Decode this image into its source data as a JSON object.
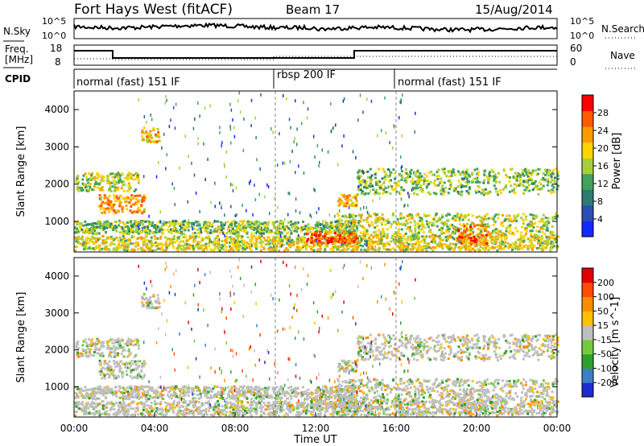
{
  "header": {
    "radar": "Fort Hays West (fitACF)",
    "beam": "Beam 17",
    "date": "15/Aug/2014"
  },
  "noise_panel": {
    "left_label": "N.Sky",
    "left_ticks": [
      "10^5",
      "10^0"
    ],
    "right_label": "N.Search",
    "right_ticks": [
      "10^5",
      "10^0"
    ]
  },
  "freq_panel": {
    "left_label_line1": "Freq.",
    "left_label_line2": "[MHz]",
    "left_ticks": [
      "18",
      "8"
    ],
    "right_label": "Nave",
    "right_ticks": [
      "60",
      "0"
    ]
  },
  "cpid_panel": {
    "label": "CPID",
    "segments": [
      {
        "name": "normal (fast) 151 IF",
        "start": 0,
        "end": 10
      },
      {
        "name": "rbsp 200 IF",
        "start": 10,
        "end": 16
      },
      {
        "name": "normal (fast) 151 IF",
        "start": 16,
        "end": 24
      }
    ]
  },
  "colors": {
    "power_scale": [
      "#1428ff",
      "#2b4fb0",
      "#2e7b72",
      "#41a35b",
      "#a8cf3a",
      "#ffd400",
      "#ff9a00",
      "#ff5a00",
      "#ff0000"
    ],
    "velocity_scale": [
      "#1c2cd2",
      "#3c7fc8",
      "#2ea02e",
      "#74cc3c",
      "#bfbfbf",
      "#ffc000",
      "#ff8c00",
      "#ff4a00",
      "#e00000"
    ]
  },
  "chart_data": [
    {
      "type": "heatmap",
      "panel": "power",
      "ylabel": "Slant Range [km]",
      "ylim": [
        180,
        4500
      ],
      "yticks": [
        1000,
        2000,
        3000,
        4000
      ],
      "xlim": [
        0,
        24
      ],
      "colorbar_label": "Power [dB]",
      "colorbar_ticks": [
        "28",
        "24",
        "20",
        "16",
        "12",
        "8",
        "4"
      ],
      "color_range": [
        0,
        30
      ]
    },
    {
      "type": "heatmap",
      "panel": "velocity",
      "ylabel": "Slant Range [km]",
      "ylim": [
        180,
        4500
      ],
      "yticks": [
        1000,
        2000,
        3000,
        4000
      ],
      "xlim": [
        0,
        24
      ],
      "xlabel": "Time UT",
      "xticks": [
        "00:00",
        "04:00",
        "08:00",
        "12:00",
        "16:00",
        "20:00",
        "00:00"
      ],
      "colorbar_label": "Velocity [m s^-1]",
      "colorbar_ticks": [
        "200",
        "100",
        "50",
        "15",
        "-15",
        "-50",
        "-100",
        "-200"
      ],
      "color_range": [
        -250,
        250
      ]
    }
  ]
}
